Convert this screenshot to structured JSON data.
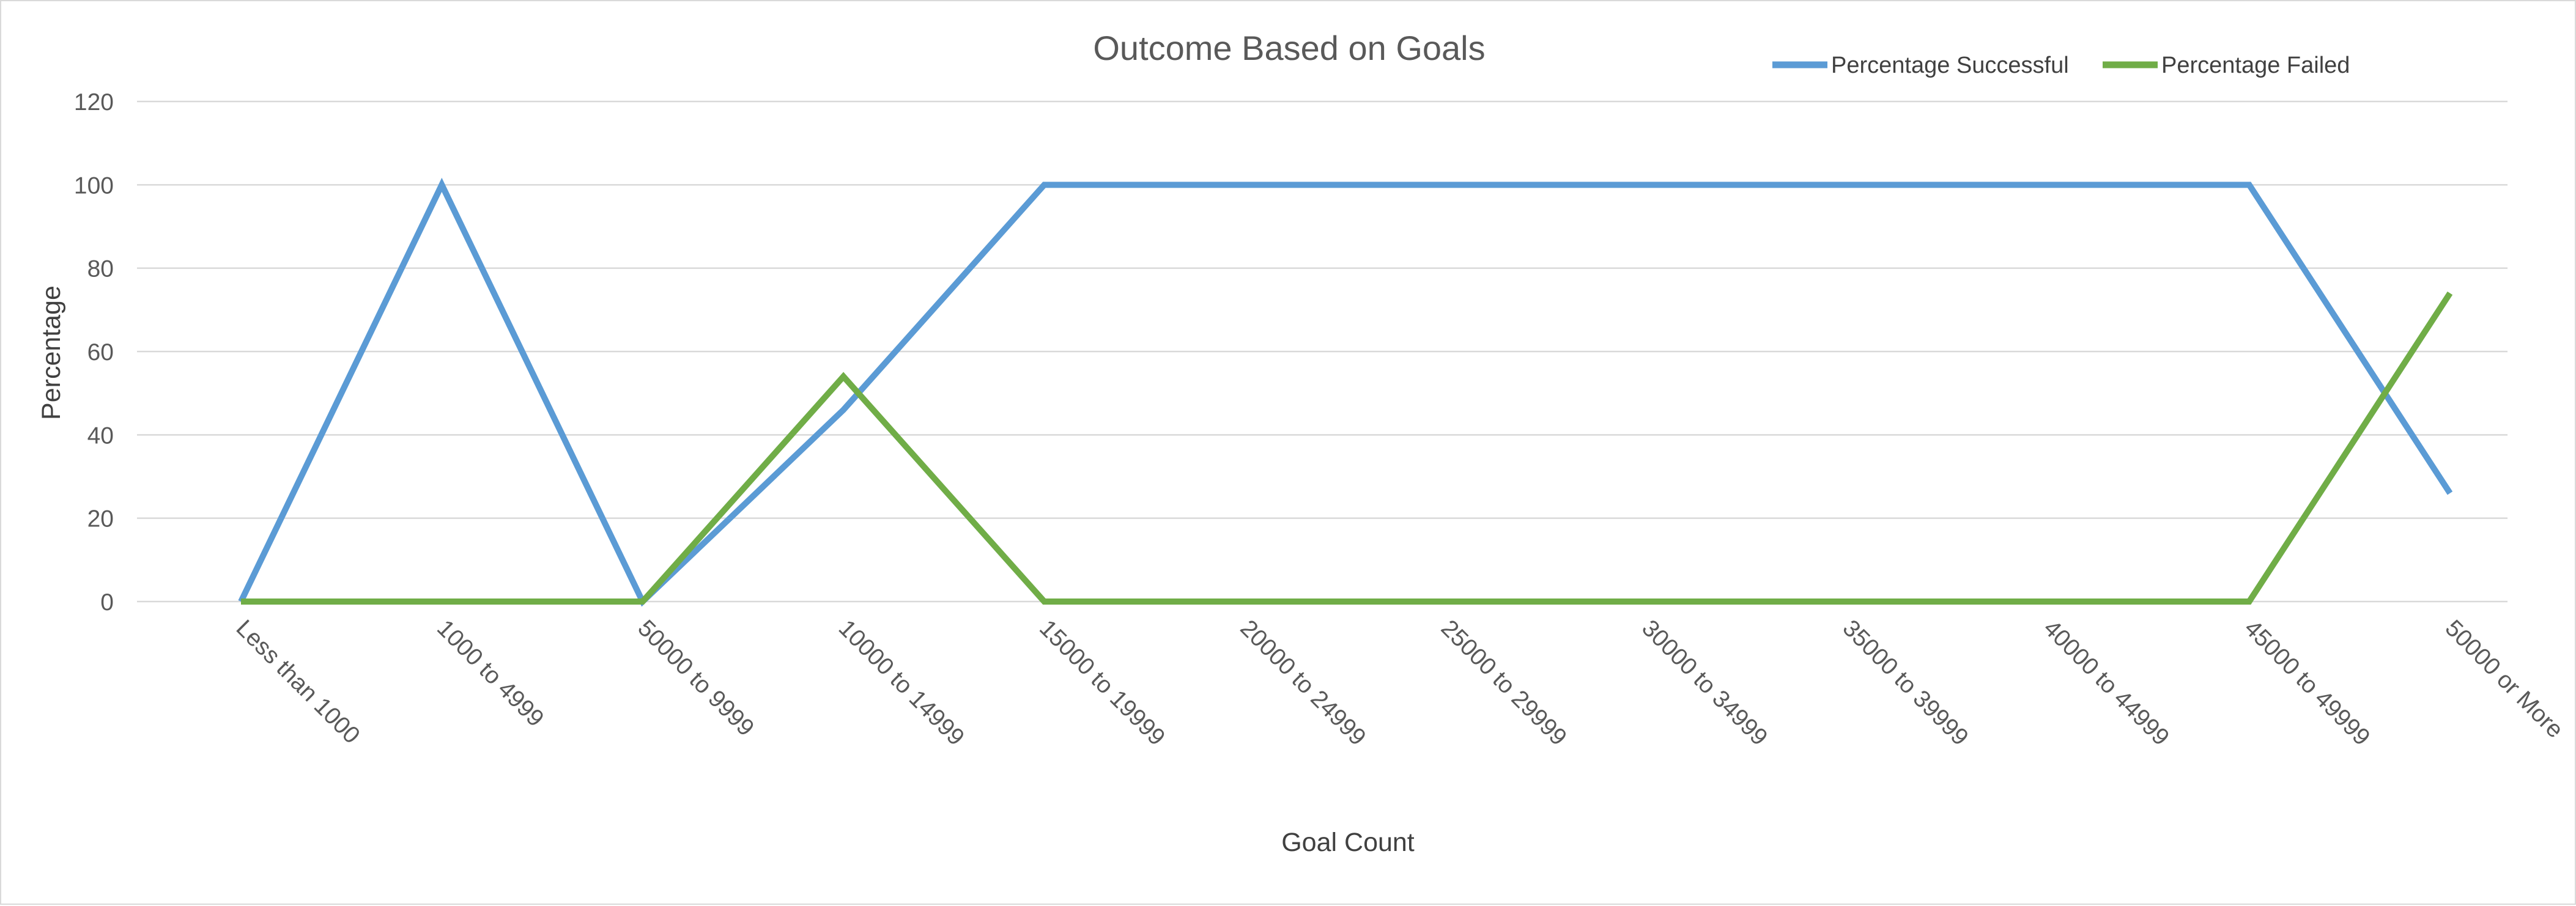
{
  "chart_data": {
    "type": "line",
    "title": "Outcome Based on Goals",
    "xlabel": "Goal Count",
    "ylabel": "Percentage",
    "ylim": [
      0,
      120
    ],
    "yticks": [
      0,
      20,
      40,
      60,
      80,
      100,
      120
    ],
    "grid": true,
    "legend_position": "top-right",
    "categories": [
      "Less than 1000",
      "1000 to 4999",
      "50000 to 9999",
      "10000 to 14999",
      "15000 to 19999",
      "20000 to 24999",
      "25000 to 29999",
      "30000 to 34999",
      "35000 to 39999",
      "40000 to 44999",
      "45000 to 49999",
      "50000 or More"
    ],
    "series": [
      {
        "name": "Percentage Successful",
        "color": "#5b9bd5",
        "values": [
          0,
          100,
          0,
          46,
          100,
          100,
          100,
          100,
          100,
          100,
          100,
          26
        ]
      },
      {
        "name": "Percentage Failed",
        "color": "#70ad47",
        "values": [
          0,
          0,
          0,
          54,
          0,
          0,
          0,
          0,
          0,
          0,
          0,
          74
        ]
      }
    ]
  }
}
